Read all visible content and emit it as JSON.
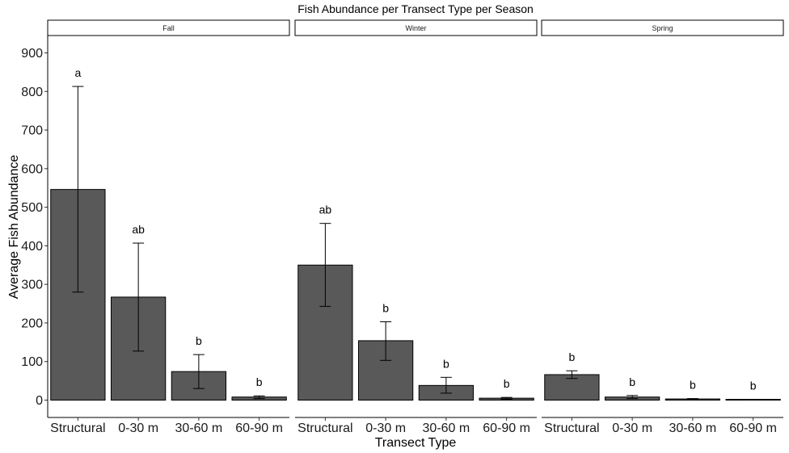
{
  "chart_data": {
    "type": "bar",
    "title": "Fish Abundance per Transect Type per Season",
    "xlabel": "Transect Type",
    "ylabel": "Average Fish Abundance",
    "ylim": [
      -45,
      945
    ],
    "yticks": [
      0,
      100,
      200,
      300,
      400,
      500,
      600,
      700,
      800,
      900
    ],
    "categories": [
      "Structural",
      "0-30 m",
      "30-60 m",
      "60-90 m"
    ],
    "bar_color": "#595959",
    "grid": false,
    "facets": [
      {
        "name": "Fall",
        "values": [
          546,
          267,
          74,
          8
        ],
        "err_low": [
          280,
          127,
          30,
          4
        ],
        "err_high": [
          813,
          407,
          118,
          11
        ],
        "labels": [
          "a",
          "ab",
          "b",
          "b"
        ]
      },
      {
        "name": "Winter",
        "values": [
          350,
          154,
          38,
          5
        ],
        "err_low": [
          243,
          103,
          18,
          2
        ],
        "err_high": [
          458,
          203,
          59,
          7
        ],
        "labels": [
          "ab",
          "b",
          "b",
          "b"
        ]
      },
      {
        "name": "Spring",
        "values": [
          66,
          8,
          3,
          2
        ],
        "err_low": [
          56,
          4,
          2,
          1
        ],
        "err_high": [
          76,
          12,
          4,
          2
        ],
        "labels": [
          "b",
          "b",
          "b",
          "b"
        ]
      }
    ]
  }
}
